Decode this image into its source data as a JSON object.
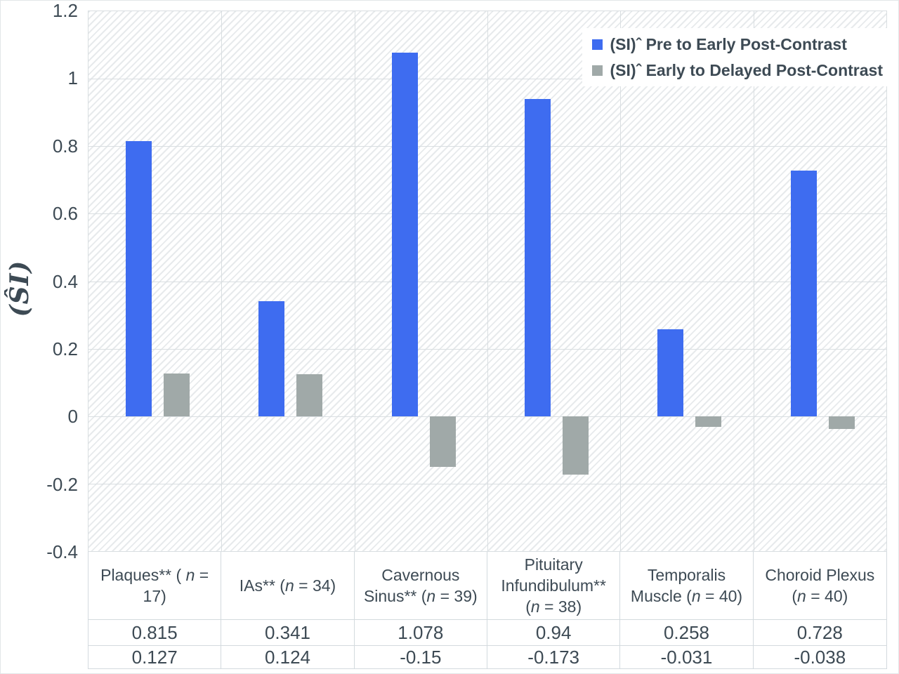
{
  "colors": {
    "series_blue": "#3E6CF0",
    "series_gray": "#A0A9A8",
    "grid": "#D9DEE1",
    "table_border": "#D3DADE",
    "text": "#3D4A54",
    "hatch": "#E7EAEC",
    "legend_bg": "#FFFFFF"
  },
  "chart_data": {
    "type": "bar",
    "title": "",
    "ylabel": "(ŜI)",
    "xlabel": "",
    "ylim": [
      -0.4,
      1.2
    ],
    "yticks": [
      1.2,
      1,
      0.8,
      0.6,
      0.4,
      0.2,
      0,
      -0.2,
      -0.4
    ],
    "ytick_labels": [
      "1.2",
      "1",
      "0.8",
      "0.6",
      "0.4",
      "0.2",
      "0",
      "-0.2",
      "-0.4"
    ],
    "grid": true,
    "hatch_fill": true,
    "legend_position": "top-right",
    "categories_text": [
      "Plaques** ( n = 17)",
      "IAs** (n = 34)",
      "Cavernous Sinus** (n = 39)",
      "Pituitary Infundibulum** (n = 38)",
      "Temporalis Muscle (n = 40)",
      "Choroid Plexus (n = 40)"
    ],
    "categories": [
      {
        "parts": [
          {
            "t": "Plaques** ( "
          },
          {
            "t": "n",
            "i": 1
          },
          {
            "t": " = 17)"
          }
        ]
      },
      {
        "parts": [
          {
            "t": "IAs** ("
          },
          {
            "t": "n",
            "i": 1
          },
          {
            "t": " = 34)"
          }
        ]
      },
      {
        "parts": [
          {
            "t": "Cavernous Sinus** ("
          },
          {
            "t": "n",
            "i": 1
          },
          {
            "t": " = 39)"
          }
        ]
      },
      {
        "parts": [
          {
            "t": "Pituitary Infundibulum** ("
          },
          {
            "t": "n",
            "i": 1
          },
          {
            "t": " = 38)"
          }
        ]
      },
      {
        "parts": [
          {
            "t": "Temporalis Muscle ("
          },
          {
            "t": "n",
            "i": 1
          },
          {
            "t": " = 40)"
          }
        ]
      },
      {
        "parts": [
          {
            "t": "Choroid Plexus ("
          },
          {
            "t": "n",
            "i": 1
          },
          {
            "t": " = 40)"
          }
        ]
      }
    ],
    "series": [
      {
        "name": "(SI)ˆ Pre to Early Post-Contrast",
        "color": "#3E6CF0",
        "values": [
          0.815,
          0.341,
          1.078,
          0.94,
          0.258,
          0.728
        ],
        "labels": [
          "0.815",
          "0.341",
          "1.078",
          "0.94",
          "0.258",
          "0.728"
        ]
      },
      {
        "name": "(SI)ˆ Early to Delayed Post-Contrast",
        "color": "#A0A9A8",
        "values": [
          0.127,
          0.124,
          -0.15,
          -0.173,
          -0.031,
          -0.038
        ],
        "labels": [
          "0.127",
          "0.124",
          "-0.15",
          "-0.173",
          "-0.031",
          "-0.038"
        ]
      }
    ]
  }
}
